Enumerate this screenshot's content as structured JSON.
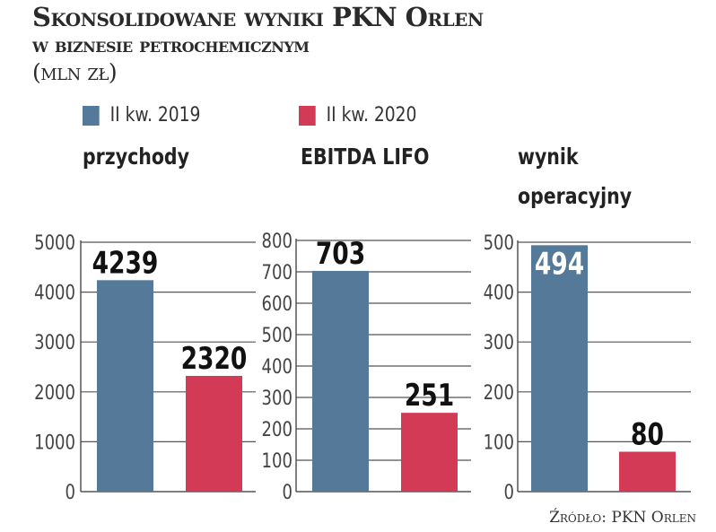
{
  "title_line1": "Skonsolidowane wyniki PKN Orlen",
  "title_line2": "w biznesie petrochemicznym",
  "unit": "(mln zł)",
  "source": "Źródło: PKN Orlen",
  "colors": {
    "2019": "#557a99",
    "2020": "#d23a55"
  },
  "legend": [
    {
      "label": "II kw. 2019",
      "color": "#557a99"
    },
    {
      "label": "II kw. 2020",
      "color": "#d23a55"
    }
  ],
  "chart_data": [
    {
      "type": "bar",
      "title": "przychody",
      "categories": [
        "II kw. 2019",
        "II kw. 2020"
      ],
      "values": [
        4239,
        2320
      ],
      "ylim": [
        0,
        5000
      ],
      "yticks": [
        0,
        1000,
        2000,
        3000,
        4000,
        5000
      ],
      "grid": true
    },
    {
      "type": "bar",
      "title": "EBITDA LIFO",
      "categories": [
        "II kw. 2019",
        "II kw. 2020"
      ],
      "values": [
        703,
        251
      ],
      "ylim": [
        0,
        800
      ],
      "yticks": [
        0,
        100,
        200,
        300,
        400,
        500,
        600,
        700,
        800
      ],
      "grid": true
    },
    {
      "type": "bar",
      "title_lines": [
        "wynik",
        "operacyjny"
      ],
      "categories": [
        "II kw. 2019",
        "II kw. 2020"
      ],
      "values": [
        494,
        80
      ],
      "ylim": [
        0,
        500
      ],
      "yticks": [
        0,
        100,
        200,
        300,
        400,
        500
      ],
      "grid": true
    }
  ]
}
